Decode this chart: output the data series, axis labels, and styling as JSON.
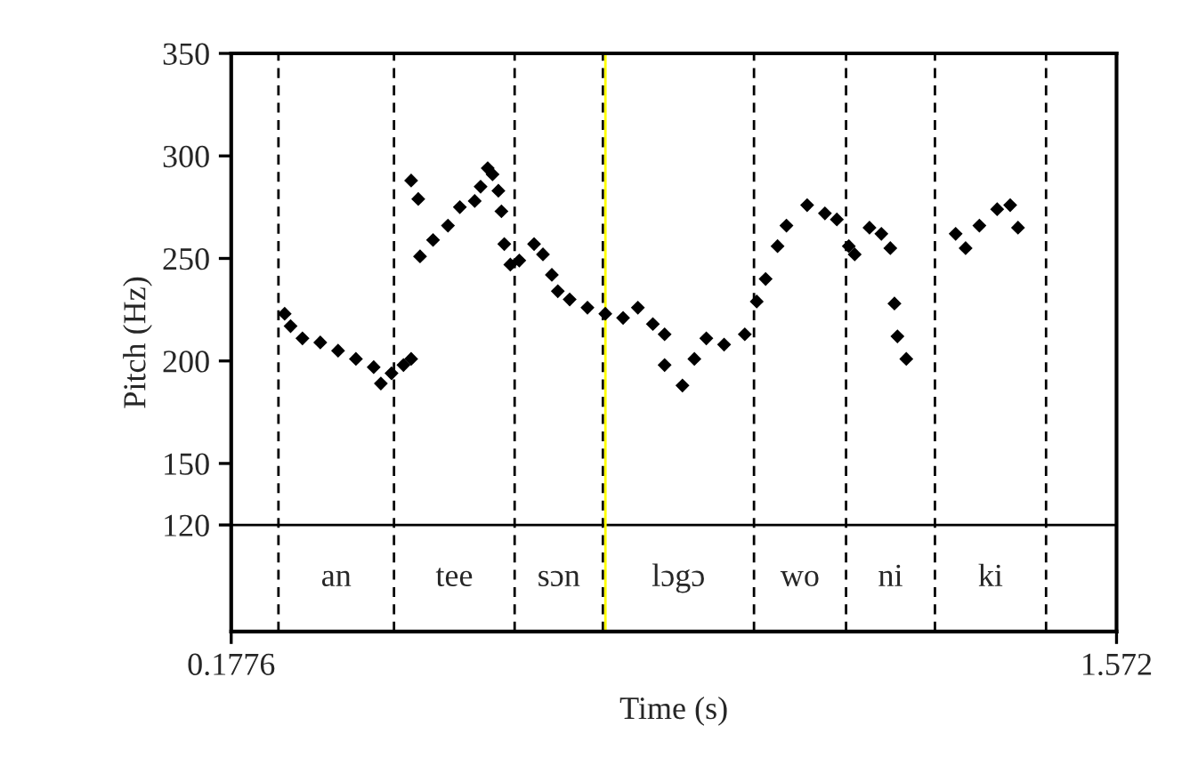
{
  "chart_data": {
    "type": "scatter",
    "xlabel": "Time (s)",
    "ylabel": "Pitch (Hz)",
    "x": [
      0.2618,
      0.2711,
      0.2898,
      0.3179,
      0.3459,
      0.374,
      0.402,
      0.4133,
      0.4301,
      0.4489,
      0.461,
      0.461,
      0.4722,
      0.475,
      0.4955,
      0.519,
      0.5377,
      0.5611,
      0.5704,
      0.5816,
      0.5892,
      0.5984,
      0.6032,
      0.6077,
      0.6172,
      0.6313,
      0.6546,
      0.6686,
      0.6826,
      0.692,
      0.7107,
      0.7387,
      0.7668,
      0.7948,
      0.8181,
      0.8417,
      0.8602,
      0.8602,
      0.8883,
      0.9071,
      0.9259,
      0.9539,
      0.9865,
      1.0053,
      1.0193,
      1.0381,
      1.0521,
      1.0847,
      1.1127,
      1.1315,
      1.1503,
      1.1596,
      1.1829,
      1.2016,
      1.2157,
      1.2222,
      1.2269,
      1.2409,
      1.3186,
      1.3343,
      1.356,
      1.384,
      1.4045,
      1.4168
    ],
    "values": [
      223,
      217,
      211,
      209,
      205,
      201,
      197,
      189,
      194,
      198,
      201,
      288,
      279,
      251,
      259,
      266,
      275,
      278,
      285,
      294,
      291,
      283,
      273,
      257,
      247,
      249,
      257,
      252,
      242,
      234,
      230,
      226,
      223,
      221,
      226,
      218,
      213,
      198,
      188,
      201,
      211,
      208,
      213,
      229,
      240,
      256,
      266,
      276,
      272,
      269,
      256,
      252,
      265,
      262,
      255,
      228,
      212,
      201,
      262,
      255,
      266,
      274,
      276,
      265
    ],
    "color": "#000000",
    "marker": "diamond",
    "xlim": [
      0.1776,
      1.572
    ],
    "xticks": [
      0.1776,
      1.572
    ],
    "ylim": [
      68,
      350
    ],
    "yticks": [
      120,
      150,
      200,
      250,
      300,
      350
    ],
    "grid": false,
    "legend": false,
    "ref_lines": [
      {
        "axis": "y",
        "value": 120,
        "color": "#000000",
        "line_style": "solid"
      },
      {
        "axis": "x",
        "value": 0.252,
        "color": "#000000",
        "line_style": "dashed"
      },
      {
        "axis": "x",
        "value": 0.434,
        "color": "#000000",
        "line_style": "dashed"
      },
      {
        "axis": "x",
        "value": 0.624,
        "color": "#000000",
        "line_style": "dashed"
      },
      {
        "axis": "x",
        "value": 0.763,
        "color": "#000000",
        "line_style": "dashed"
      },
      {
        "axis": "x",
        "value": 1.001,
        "color": "#000000",
        "line_style": "dashed"
      },
      {
        "axis": "x",
        "value": 1.146,
        "color": "#000000",
        "line_style": "dashed"
      },
      {
        "axis": "x",
        "value": 1.286,
        "color": "#000000",
        "line_style": "dashed"
      },
      {
        "axis": "x",
        "value": 1.461,
        "color": "#000000",
        "line_style": "dashed"
      },
      {
        "axis": "x",
        "value": 0.767,
        "color": "#ffff00",
        "line_style": "solid"
      }
    ],
    "annotations": [
      "an",
      "tee",
      "sɔn",
      "lɔgɔ",
      "wo",
      "ni",
      "ki"
    ]
  }
}
